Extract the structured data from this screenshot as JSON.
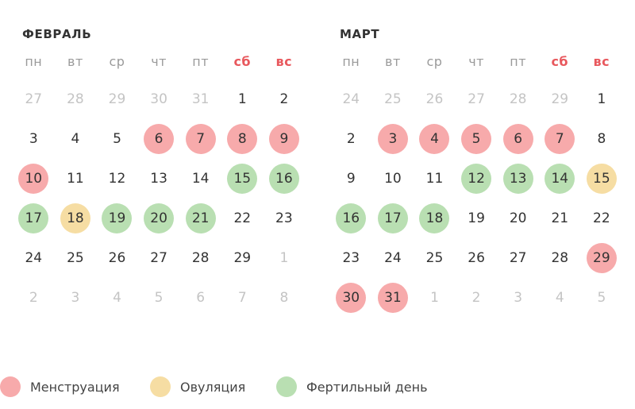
{
  "months": [
    {
      "title": "ФЕВРАЛЬ",
      "weekdays": [
        "пн",
        "вт",
        "ср",
        "чт",
        "пт",
        "сб",
        "вс"
      ],
      "days": [
        {
          "n": "27",
          "state": "other"
        },
        {
          "n": "28",
          "state": "other"
        },
        {
          "n": "29",
          "state": "other"
        },
        {
          "n": "30",
          "state": "other"
        },
        {
          "n": "31",
          "state": "other"
        },
        {
          "n": "1",
          "state": ""
        },
        {
          "n": "2",
          "state": ""
        },
        {
          "n": "3",
          "state": ""
        },
        {
          "n": "4",
          "state": ""
        },
        {
          "n": "5",
          "state": ""
        },
        {
          "n": "6",
          "state": "menstruation"
        },
        {
          "n": "7",
          "state": "menstruation"
        },
        {
          "n": "8",
          "state": "menstruation"
        },
        {
          "n": "9",
          "state": "menstruation"
        },
        {
          "n": "10",
          "state": "menstruation"
        },
        {
          "n": "11",
          "state": ""
        },
        {
          "n": "12",
          "state": ""
        },
        {
          "n": "13",
          "state": ""
        },
        {
          "n": "14",
          "state": ""
        },
        {
          "n": "15",
          "state": "fertile"
        },
        {
          "n": "16",
          "state": "fertile"
        },
        {
          "n": "17",
          "state": "fertile"
        },
        {
          "n": "18",
          "state": "ovulation"
        },
        {
          "n": "19",
          "state": "fertile"
        },
        {
          "n": "20",
          "state": "fertile"
        },
        {
          "n": "21",
          "state": "fertile"
        },
        {
          "n": "22",
          "state": ""
        },
        {
          "n": "23",
          "state": ""
        },
        {
          "n": "24",
          "state": ""
        },
        {
          "n": "25",
          "state": ""
        },
        {
          "n": "26",
          "state": ""
        },
        {
          "n": "27",
          "state": ""
        },
        {
          "n": "28",
          "state": ""
        },
        {
          "n": "29",
          "state": ""
        },
        {
          "n": "1",
          "state": "other"
        },
        {
          "n": "2",
          "state": "other"
        },
        {
          "n": "3",
          "state": "other"
        },
        {
          "n": "4",
          "state": "other"
        },
        {
          "n": "5",
          "state": "other"
        },
        {
          "n": "6",
          "state": "other"
        },
        {
          "n": "7",
          "state": "other"
        },
        {
          "n": "8",
          "state": "other"
        }
      ]
    },
    {
      "title": "МАРТ",
      "weekdays": [
        "пн",
        "вт",
        "ср",
        "чт",
        "пт",
        "сб",
        "вс"
      ],
      "days": [
        {
          "n": "24",
          "state": "other"
        },
        {
          "n": "25",
          "state": "other"
        },
        {
          "n": "26",
          "state": "other"
        },
        {
          "n": "27",
          "state": "other"
        },
        {
          "n": "28",
          "state": "other"
        },
        {
          "n": "29",
          "state": "other"
        },
        {
          "n": "1",
          "state": ""
        },
        {
          "n": "2",
          "state": ""
        },
        {
          "n": "3",
          "state": "menstruation"
        },
        {
          "n": "4",
          "state": "menstruation"
        },
        {
          "n": "5",
          "state": "menstruation"
        },
        {
          "n": "6",
          "state": "menstruation"
        },
        {
          "n": "7",
          "state": "menstruation"
        },
        {
          "n": "8",
          "state": ""
        },
        {
          "n": "9",
          "state": ""
        },
        {
          "n": "10",
          "state": ""
        },
        {
          "n": "11",
          "state": ""
        },
        {
          "n": "12",
          "state": "fertile"
        },
        {
          "n": "13",
          "state": "fertile"
        },
        {
          "n": "14",
          "state": "fertile"
        },
        {
          "n": "15",
          "state": "ovulation"
        },
        {
          "n": "16",
          "state": "fertile"
        },
        {
          "n": "17",
          "state": "fertile"
        },
        {
          "n": "18",
          "state": "fertile"
        },
        {
          "n": "19",
          "state": ""
        },
        {
          "n": "20",
          "state": ""
        },
        {
          "n": "21",
          "state": ""
        },
        {
          "n": "22",
          "state": ""
        },
        {
          "n": "23",
          "state": ""
        },
        {
          "n": "24",
          "state": ""
        },
        {
          "n": "25",
          "state": ""
        },
        {
          "n": "26",
          "state": ""
        },
        {
          "n": "27",
          "state": ""
        },
        {
          "n": "28",
          "state": ""
        },
        {
          "n": "29",
          "state": "menstruation"
        },
        {
          "n": "30",
          "state": "menstruation"
        },
        {
          "n": "31",
          "state": "menstruation"
        },
        {
          "n": "1",
          "state": "other"
        },
        {
          "n": "2",
          "state": "other"
        },
        {
          "n": "3",
          "state": "other"
        },
        {
          "n": "4",
          "state": "other"
        },
        {
          "n": "5",
          "state": "other"
        }
      ]
    }
  ],
  "legend": {
    "menstruation": "Менструация",
    "ovulation": "Овуляция",
    "fertile": "Фертильный день"
  },
  "colors": {
    "menstruation": "#f7aaab",
    "ovulation": "#f6dda3",
    "fertile": "#b9dfb2",
    "weekend": "#e8585d",
    "muted": "#c4c4c4"
  }
}
